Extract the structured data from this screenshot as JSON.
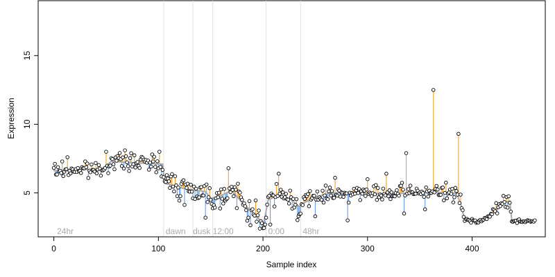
{
  "chart_data": {
    "type": "scatter",
    "title": "",
    "xlabel": "Sample index",
    "ylabel": "Expression",
    "xlim": [
      -15,
      470
    ],
    "ylim": [
      1.8,
      19
    ],
    "x_ticks": [
      0,
      100,
      200,
      300,
      400
    ],
    "y_ticks": [
      5,
      10,
      15
    ],
    "grid": false,
    "legend": "none",
    "colors": {
      "point_stroke": "#000000",
      "point_fill": "#ffffff",
      "trend": "#aaaaaa",
      "above_segment": "#f0a030",
      "below_segment": "#6a9ee0",
      "divider": "#e0e0e0",
      "phase_text": "#aaaaaa"
    },
    "phase_dividers": [
      105,
      133,
      152,
      203,
      236
    ],
    "phase_labels": [
      {
        "x": 3,
        "text": "24hr"
      },
      {
        "x": 107,
        "text": "dawn"
      },
      {
        "x": 133,
        "text": "dusk"
      },
      {
        "x": 152,
        "text": "12:00"
      },
      {
        "x": 205,
        "text": "0:00"
      },
      {
        "x": 238,
        "text": "48hr"
      }
    ],
    "trend_knots": [
      [
        0,
        6.6
      ],
      [
        20,
        6.7
      ],
      [
        45,
        6.7
      ],
      [
        55,
        7.3
      ],
      [
        75,
        7.2
      ],
      [
        104,
        7.1
      ],
      [
        106,
        5.7
      ],
      [
        125,
        5.3
      ],
      [
        145,
        5.1
      ],
      [
        150,
        4.6
      ],
      [
        160,
        4.8
      ],
      [
        170,
        5.2
      ],
      [
        180,
        4.3
      ],
      [
        190,
        3.6
      ],
      [
        197,
        3.0
      ],
      [
        200,
        2.5
      ],
      [
        205,
        4.5
      ],
      [
        215,
        4.8
      ],
      [
        225,
        4.6
      ],
      [
        235,
        4.0
      ],
      [
        240,
        4.3
      ],
      [
        250,
        4.7
      ],
      [
        265,
        5.0
      ],
      [
        280,
        5.0
      ],
      [
        300,
        5.0
      ],
      [
        320,
        4.9
      ],
      [
        340,
        5.0
      ],
      [
        355,
        5.1
      ],
      [
        375,
        5.0
      ],
      [
        385,
        5.0
      ],
      [
        390,
        4.0
      ],
      [
        393,
        3.0
      ],
      [
        410,
        3.0
      ],
      [
        420,
        3.5
      ],
      [
        430,
        4.3
      ],
      [
        436,
        4.4
      ],
      [
        438,
        3.0
      ],
      [
        450,
        2.9
      ],
      [
        458,
        2.9
      ],
      [
        460,
        3.0
      ]
    ],
    "outliers": [
      [
        13,
        7.6
      ],
      [
        50,
        8.0
      ],
      [
        68,
        8.1
      ],
      [
        94,
        7.8
      ],
      [
        101,
        8.0
      ],
      [
        112,
        6.2
      ],
      [
        167,
        6.8
      ],
      [
        215,
        6.4
      ],
      [
        269,
        6.1
      ],
      [
        300,
        6.0
      ],
      [
        318,
        6.4
      ],
      [
        337,
        7.9
      ],
      [
        363,
        12.5
      ],
      [
        387,
        9.3
      ],
      [
        145,
        3.2
      ],
      [
        202,
        2.7
      ],
      [
        207,
        2.7
      ],
      [
        250,
        3.3
      ],
      [
        281,
        3.0
      ],
      [
        186,
        3.2
      ],
      [
        335,
        3.5
      ],
      [
        355,
        3.8
      ]
    ],
    "noise_seed": 7
  }
}
